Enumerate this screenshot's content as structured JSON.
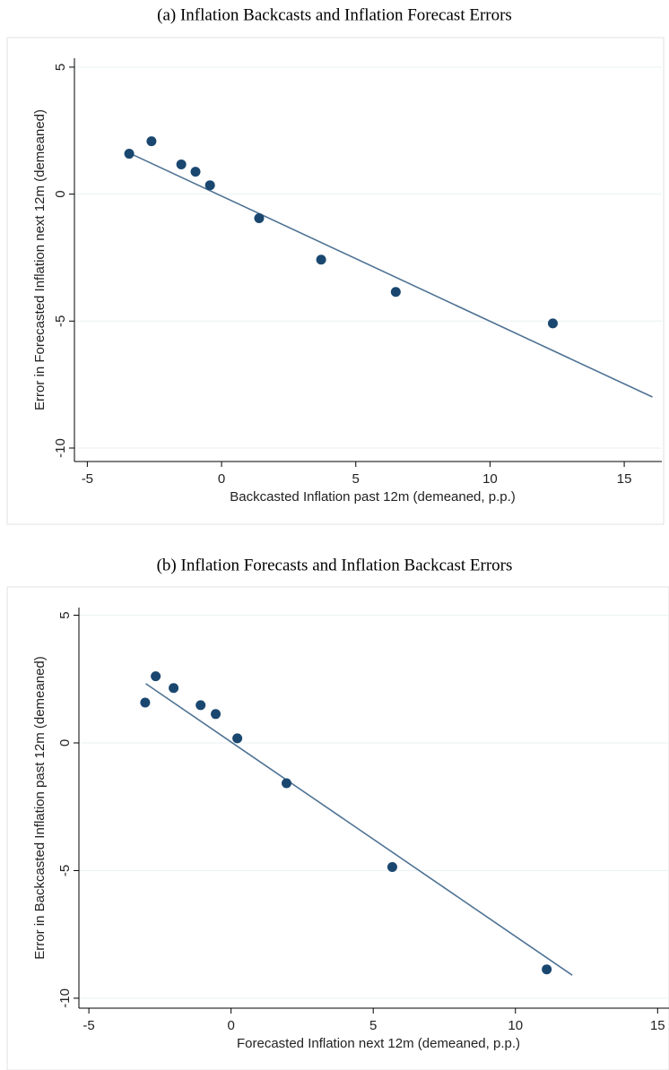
{
  "chart_data": [
    {
      "type": "scatter",
      "title": "(a) Inflation Backcasts and Inflation Forecast Errors",
      "xlabel": "Backcasted Inflation past 12m (demeaned, p.p.)",
      "ylabel": "Error in Forecasted Inflation next 12m (demeaned)",
      "x": [
        -3.44,
        -2.61,
        -1.5,
        -0.97,
        -0.43,
        1.4,
        3.71,
        6.49,
        12.34
      ],
      "values": [
        1.59,
        2.08,
        1.17,
        0.88,
        0.35,
        -0.95,
        -2.58,
        -3.85,
        -5.09
      ],
      "color": "#1a476f",
      "fit": {
        "x": [
          -3.38,
          16.05
        ],
        "values": [
          1.59,
          -7.99
        ],
        "color": "#4f7394"
      },
      "xlim": [
        -5.48,
        16.4
      ],
      "ylim": [
        -10.53,
        5.35
      ],
      "xticks": [
        -5,
        0,
        5,
        10,
        15
      ],
      "yticks": [
        -10,
        -5,
        0,
        5
      ],
      "grid": true
    },
    {
      "type": "scatter",
      "title": "(b) Inflation Forecasts and Inflation Backcast Errors",
      "xlabel": "Forecasted Inflation next 12m (demeaned, p.p.)",
      "ylabel": "Error in Backcasted Inflation past 12m (demeaned)",
      "x": [
        -3.02,
        -2.65,
        -2.02,
        -1.07,
        -0.54,
        0.22,
        1.95,
        5.67,
        11.1
      ],
      "values": [
        1.58,
        2.61,
        2.15,
        1.48,
        1.13,
        0.18,
        -1.58,
        -4.86,
        -8.87
      ],
      "color": "#1a476f",
      "fit": {
        "x": [
          -3.0,
          12.0
        ],
        "values": [
          2.32,
          -9.1
        ],
        "color": "#4f7394"
      },
      "xlim": [
        -5.35,
        15.4
      ],
      "ylim": [
        -10.39,
        5.3
      ],
      "xticks": [
        -5,
        0,
        5,
        10,
        15
      ],
      "yticks": [
        -10,
        -5,
        0,
        5
      ],
      "grid": true
    }
  ]
}
